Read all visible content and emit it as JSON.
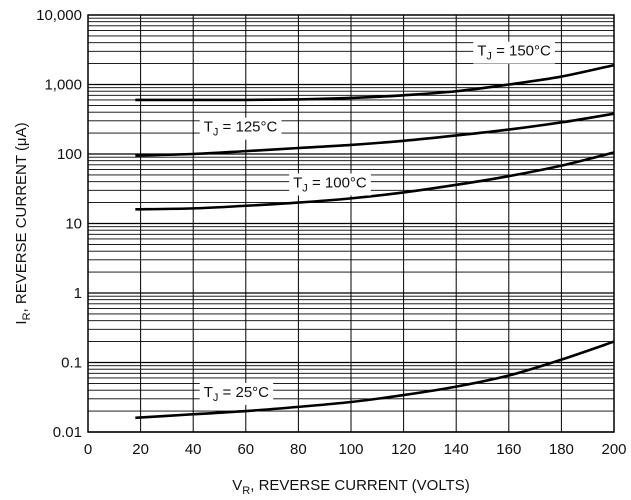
{
  "chart_data": {
    "type": "line",
    "scale": {
      "x": "linear",
      "y": "log"
    },
    "xlim": [
      0,
      200
    ],
    "ylim": [
      0.01,
      10000
    ],
    "grid": true,
    "x_ticks": [
      "0",
      "20",
      "40",
      "60",
      "80",
      "100",
      "120",
      "140",
      "160",
      "180",
      "200"
    ],
    "y_ticks": [
      "0.01",
      "0.1",
      "1",
      "10",
      "100",
      "1,000",
      "10,000"
    ],
    "xlabel": {
      "main": "V",
      "sub": "R",
      "rest": ", REVERSE CURRENT (VOLTS)"
    },
    "ylabel": {
      "main": "I",
      "sub": "R",
      "rest": ", REVERSE CURRENT (",
      "mu": "μ",
      "end": "A)"
    },
    "series": [
      {
        "name": "TJ = 150°C",
        "label": {
          "main": "T",
          "sub": "J",
          "rest": " = 150°C"
        },
        "x": [
          18,
          40,
          60,
          80,
          100,
          120,
          140,
          160,
          180,
          200
        ],
        "y": [
          600,
          600,
          600,
          610,
          640,
          700,
          800,
          1000,
          1300,
          1900
        ]
      },
      {
        "name": "TJ = 125°C",
        "label": {
          "main": "T",
          "sub": "J",
          "rest": " = 125°C"
        },
        "x": [
          18,
          40,
          60,
          80,
          100,
          120,
          140,
          160,
          180,
          200
        ],
        "y": [
          95,
          100,
          110,
          122,
          135,
          155,
          185,
          225,
          285,
          380
        ]
      },
      {
        "name": "TJ = 100°C",
        "label": {
          "main": "T",
          "sub": "J",
          "rest": " = 100°C"
        },
        "x": [
          18,
          40,
          60,
          80,
          100,
          120,
          140,
          160,
          180,
          200
        ],
        "y": [
          16,
          16.5,
          18,
          20,
          23,
          28,
          36,
          48,
          68,
          105
        ]
      },
      {
        "name": "TJ = 25°C",
        "label": {
          "main": "T",
          "sub": "J",
          "rest": " = 25°C"
        },
        "x": [
          18,
          40,
          60,
          80,
          100,
          120,
          140,
          160,
          180,
          200
        ],
        "y": [
          0.016,
          0.018,
          0.02,
          0.023,
          0.027,
          0.034,
          0.045,
          0.065,
          0.11,
          0.2
        ]
      }
    ]
  }
}
